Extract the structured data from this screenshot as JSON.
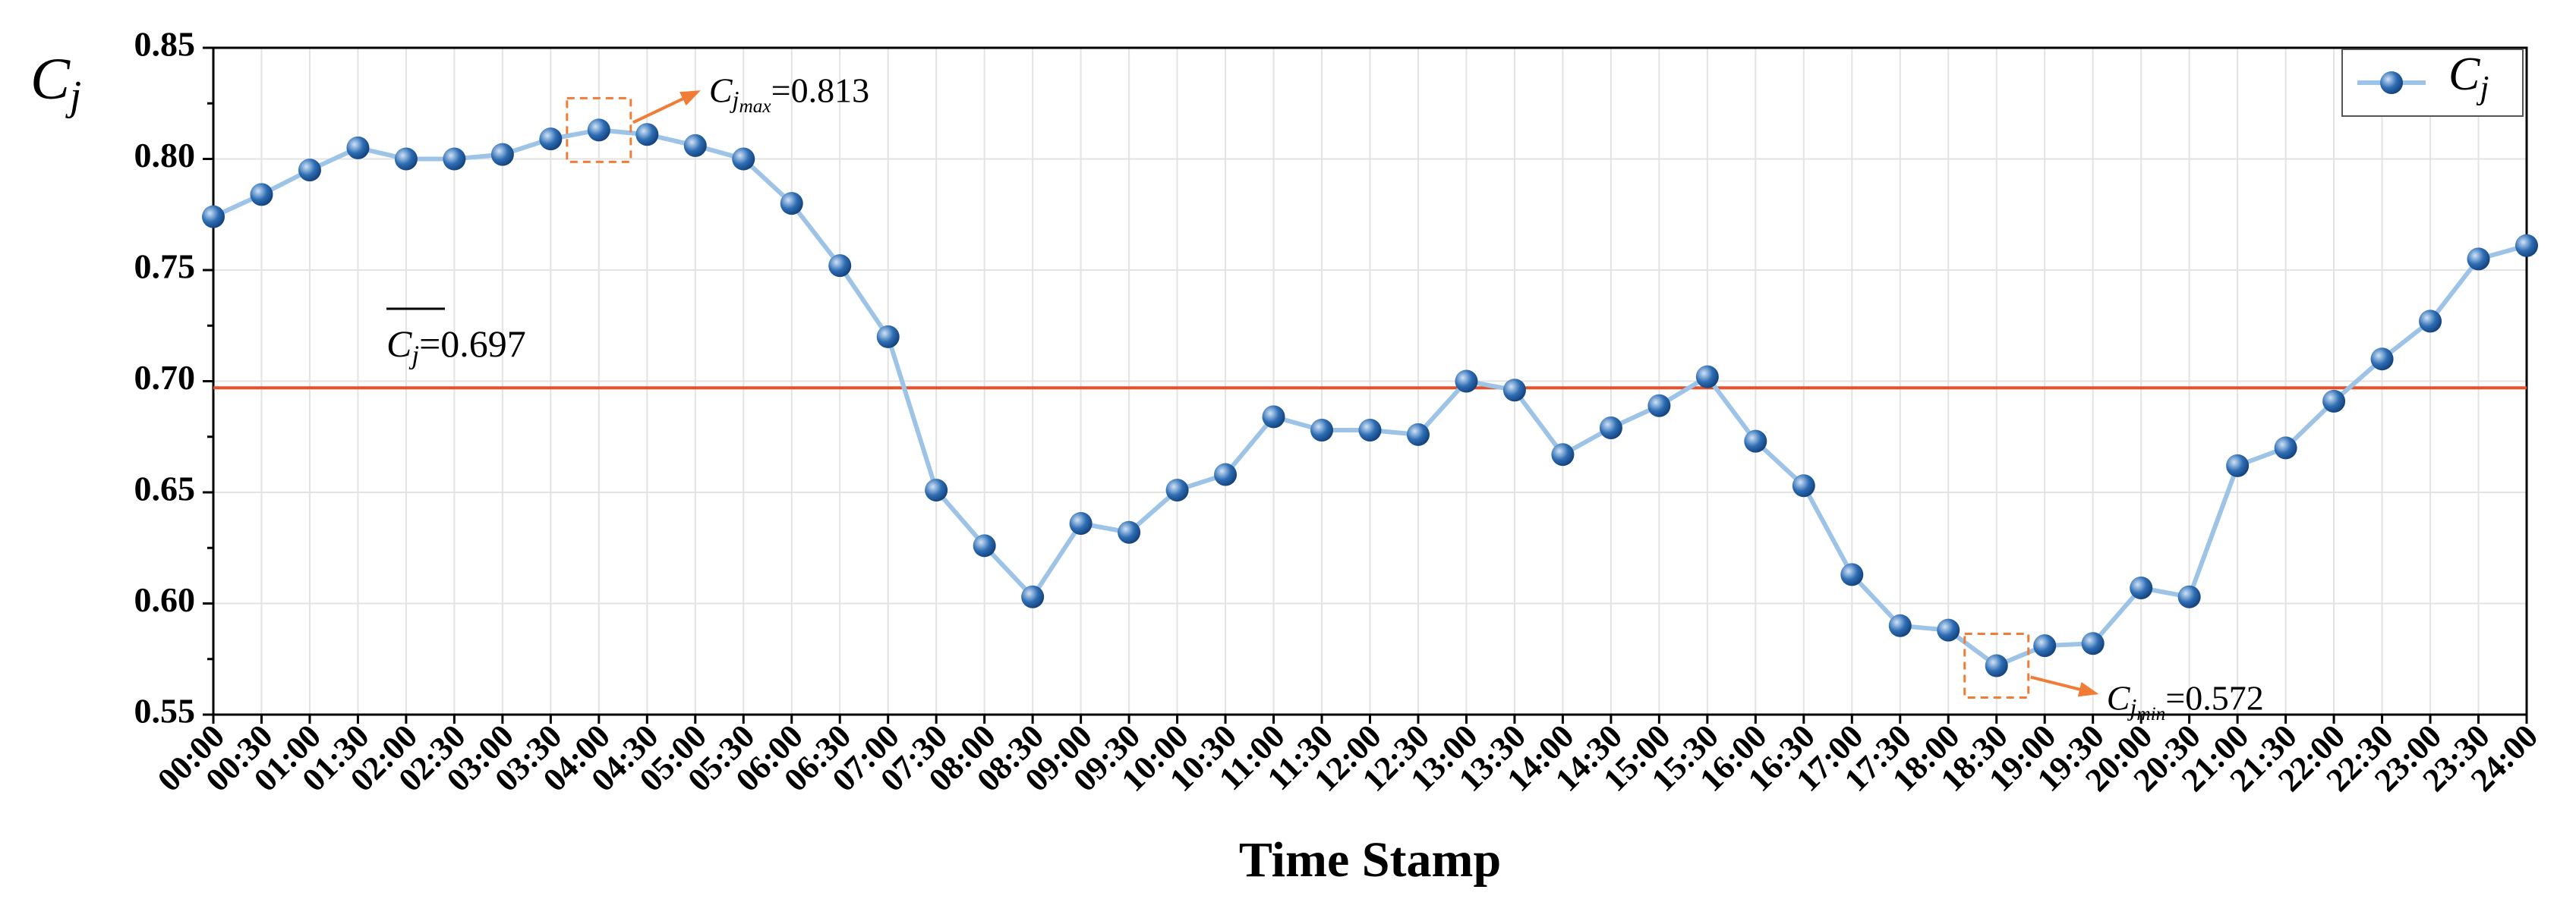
{
  "chart_data": {
    "type": "line",
    "ylabel": {
      "symbol": "C",
      "sub": "j"
    },
    "xlabel": "Time Stamp",
    "categories": [
      "00:00",
      "00:30",
      "01:00",
      "01:30",
      "02:00",
      "02:30",
      "03:00",
      "03:30",
      "04:00",
      "04:30",
      "05:00",
      "05:30",
      "06:00",
      "06:30",
      "07:00",
      "07:30",
      "08:00",
      "08:30",
      "09:00",
      "09:30",
      "10:00",
      "10:30",
      "11:00",
      "11:30",
      "12:00",
      "12:30",
      "13:00",
      "13:30",
      "14:00",
      "14:30",
      "15:00",
      "15:30",
      "16:00",
      "16:30",
      "17:00",
      "17:30",
      "18:00",
      "18:30",
      "19:00",
      "19:30",
      "20:00",
      "20:30",
      "21:00",
      "21:30",
      "22:00",
      "22:30",
      "23:00",
      "23:30",
      "24:00"
    ],
    "series": [
      {
        "name": {
          "symbol": "C",
          "sub": "j"
        },
        "color": "#9dc3e6",
        "marker_color": "#2e6db4",
        "values": [
          0.774,
          0.784,
          0.795,
          0.805,
          0.8,
          0.8,
          0.802,
          0.809,
          0.813,
          0.811,
          0.806,
          0.8,
          0.78,
          0.752,
          0.72,
          0.651,
          0.626,
          0.603,
          0.636,
          0.632,
          0.651,
          0.658,
          0.684,
          0.678,
          0.678,
          0.676,
          0.7,
          0.696,
          0.667,
          0.679,
          0.689,
          0.702,
          0.673,
          0.653,
          0.613,
          0.59,
          0.588,
          0.572,
          0.581,
          0.582,
          0.607,
          0.603,
          0.662,
          0.67,
          0.691,
          0.71,
          0.727,
          0.755,
          0.761
        ]
      }
    ],
    "ylim": [
      0.55,
      0.85
    ],
    "yticks": [
      {
        "value": 0.55,
        "label": "0.55"
      },
      {
        "value": 0.6,
        "label": "0.60"
      },
      {
        "value": 0.65,
        "label": "0.65"
      },
      {
        "value": 0.7,
        "label": "0.70"
      },
      {
        "value": 0.75,
        "label": "0.75"
      },
      {
        "value": 0.8,
        "label": "0.80"
      },
      {
        "value": 0.85,
        "label": "0.85"
      }
    ],
    "grid": true,
    "legend": "upper right",
    "mean_line": {
      "value": 0.697,
      "color": "#e8502a",
      "symbol": "C",
      "sub": "j",
      "text": "=0.697"
    },
    "annotations": [
      {
        "index": 8,
        "symbol": "C",
        "sub": "j",
        "subsub": "max",
        "text": "=0.813"
      },
      {
        "index": 37,
        "symbol": "C",
        "sub": "j",
        "subsub": "min",
        "text": "=0.572"
      }
    ]
  }
}
